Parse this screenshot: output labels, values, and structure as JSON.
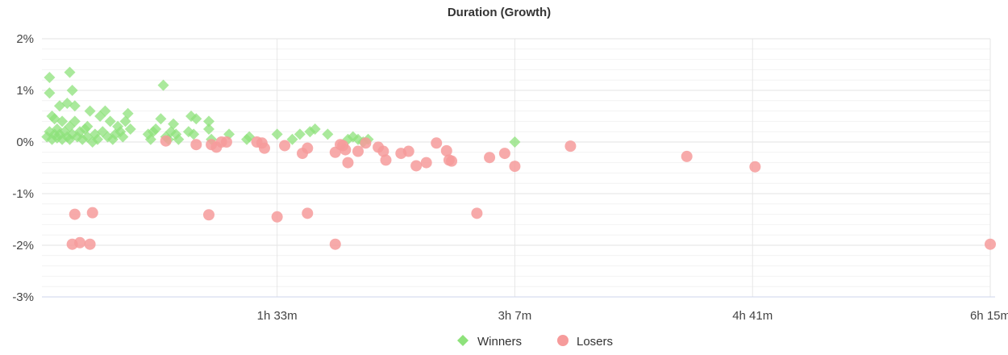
{
  "chart_data": {
    "type": "scatter",
    "title": "Duration (Growth)",
    "xlabel": "",
    "ylabel": "",
    "x_unit": "minutes",
    "xlim": [
      0,
      375
    ],
    "ylim": [
      -3,
      2
    ],
    "y_ticks": [
      {
        "value": 2,
        "label": "2%"
      },
      {
        "value": 1,
        "label": "1%"
      },
      {
        "value": 0,
        "label": "0%"
      },
      {
        "value": -1,
        "label": "-1%"
      },
      {
        "value": -2,
        "label": "-2%"
      },
      {
        "value": -3,
        "label": "-3%"
      }
    ],
    "x_ticks": [
      {
        "value": 93,
        "label": "1h 33m"
      },
      {
        "value": 187,
        "label": "3h 7m"
      },
      {
        "value": 281,
        "label": "4h 41m"
      },
      {
        "value": 375,
        "label": "6h 15m"
      }
    ],
    "grid": true,
    "legend_position": "bottom-center",
    "series": [
      {
        "name": "Winners",
        "marker": "diamond",
        "color": "#8ee27b",
        "points": [
          [
            2,
            0.1
          ],
          [
            3,
            0.2
          ],
          [
            3,
            1.25
          ],
          [
            3,
            0.95
          ],
          [
            4,
            0.5
          ],
          [
            4,
            0.05
          ],
          [
            5,
            0.45
          ],
          [
            5,
            0.15
          ],
          [
            6,
            0.25
          ],
          [
            6,
            0.08
          ],
          [
            7,
            0.7
          ],
          [
            7,
            0.15
          ],
          [
            8,
            0.05
          ],
          [
            8,
            0.4
          ],
          [
            9,
            0.2
          ],
          [
            10,
            0.1
          ],
          [
            10,
            0.75
          ],
          [
            11,
            1.35
          ],
          [
            11,
            0.3
          ],
          [
            11,
            0.05
          ],
          [
            12,
            1.0
          ],
          [
            12,
            0.15
          ],
          [
            13,
            0.7
          ],
          [
            13,
            0.4
          ],
          [
            14,
            0.1
          ],
          [
            15,
            0.2
          ],
          [
            16,
            0.05
          ],
          [
            17,
            0.25
          ],
          [
            18,
            0.3
          ],
          [
            18,
            0.1
          ],
          [
            19,
            0.6
          ],
          [
            20,
            0.0
          ],
          [
            21,
            0.15
          ],
          [
            22,
            0.05
          ],
          [
            23,
            0.5
          ],
          [
            24,
            0.2
          ],
          [
            25,
            0.6
          ],
          [
            26,
            0.1
          ],
          [
            27,
            0.4
          ],
          [
            28,
            0.05
          ],
          [
            29,
            0.15
          ],
          [
            30,
            0.3
          ],
          [
            31,
            0.2
          ],
          [
            32,
            0.1
          ],
          [
            33,
            0.4
          ],
          [
            34,
            0.55
          ],
          [
            35,
            0.25
          ],
          [
            42,
            0.15
          ],
          [
            43,
            0.05
          ],
          [
            44,
            0.2
          ],
          [
            45,
            0.25
          ],
          [
            47,
            0.45
          ],
          [
            48,
            1.1
          ],
          [
            49,
            0.1
          ],
          [
            50,
            0.05
          ],
          [
            51,
            0.2
          ],
          [
            52,
            0.35
          ],
          [
            53,
            0.15
          ],
          [
            54,
            0.05
          ],
          [
            58,
            0.2
          ],
          [
            59,
            0.5
          ],
          [
            60,
            0.15
          ],
          [
            61,
            0.45
          ],
          [
            66,
            0.25
          ],
          [
            66,
            0.4
          ],
          [
            67,
            0.05
          ],
          [
            74,
            0.15
          ],
          [
            81,
            0.05
          ],
          [
            82,
            0.1
          ],
          [
            93,
            0.15
          ],
          [
            99,
            0.05
          ],
          [
            102,
            0.15
          ],
          [
            106,
            0.2
          ],
          [
            108,
            0.25
          ],
          [
            113,
            0.15
          ],
          [
            121,
            0.05
          ],
          [
            123,
            0.1
          ],
          [
            125,
            0.05
          ],
          [
            127,
            0.0
          ],
          [
            129,
            0.05
          ],
          [
            187,
            0.0
          ]
        ]
      },
      {
        "name": "Losers",
        "marker": "circle",
        "color": "#f69b9b",
        "points": [
          [
            12,
            -1.98
          ],
          [
            13,
            -1.4
          ],
          [
            15,
            -1.95
          ],
          [
            19,
            -1.98
          ],
          [
            20,
            -1.37
          ],
          [
            49,
            0.02
          ],
          [
            61,
            -0.05
          ],
          [
            66,
            -1.41
          ],
          [
            67,
            -0.05
          ],
          [
            69,
            -0.1
          ],
          [
            71,
            0.0
          ],
          [
            73,
            0.0
          ],
          [
            85,
            0.0
          ],
          [
            87,
            -0.02
          ],
          [
            88,
            -0.12
          ],
          [
            93,
            -1.45
          ],
          [
            96,
            -0.07
          ],
          [
            103,
            -0.22
          ],
          [
            105,
            -1.38
          ],
          [
            105,
            -0.12
          ],
          [
            116,
            -1.98
          ],
          [
            116,
            -0.2
          ],
          [
            118,
            -0.05
          ],
          [
            119,
            -0.07
          ],
          [
            120,
            -0.15
          ],
          [
            121,
            -0.4
          ],
          [
            125,
            -0.18
          ],
          [
            128,
            -0.02
          ],
          [
            133,
            -0.1
          ],
          [
            135,
            -0.18
          ],
          [
            136,
            -0.35
          ],
          [
            142,
            -0.22
          ],
          [
            145,
            -0.18
          ],
          [
            148,
            -0.46
          ],
          [
            152,
            -0.4
          ],
          [
            156,
            -0.02
          ],
          [
            160,
            -0.17
          ],
          [
            161,
            -0.35
          ],
          [
            162,
            -0.37
          ],
          [
            172,
            -1.38
          ],
          [
            177,
            -0.3
          ],
          [
            183,
            -0.22
          ],
          [
            187,
            -0.47
          ],
          [
            209,
            -0.08
          ],
          [
            255,
            -0.28
          ],
          [
            282,
            -0.48
          ],
          [
            375,
            -1.98
          ]
        ]
      }
    ]
  }
}
